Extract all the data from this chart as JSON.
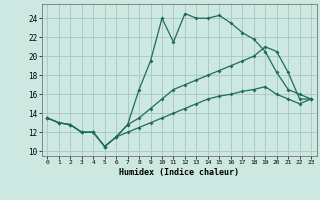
{
  "title": "",
  "xlabel": "Humidex (Indice chaleur)",
  "xlim": [
    -0.5,
    23.5
  ],
  "ylim": [
    9.5,
    25.5
  ],
  "xticks": [
    0,
    1,
    2,
    3,
    4,
    5,
    6,
    7,
    8,
    9,
    10,
    11,
    12,
    13,
    14,
    15,
    16,
    17,
    18,
    19,
    20,
    21,
    22,
    23
  ],
  "yticks": [
    10,
    12,
    14,
    16,
    18,
    20,
    22,
    24
  ],
  "bg_color": "#cce8e0",
  "grid_color": "#aaccc4",
  "line_color": "#1e6b5e",
  "line1_y": [
    13.5,
    13.0,
    12.8,
    12.0,
    12.0,
    10.5,
    11.5,
    12.8,
    16.5,
    19.5,
    24.0,
    21.5,
    24.5,
    24.0,
    24.0,
    24.3,
    23.5,
    22.5,
    21.8,
    20.5,
    18.3,
    16.5,
    16.0,
    15.5
  ],
  "line2_y": [
    13.5,
    13.0,
    12.8,
    12.0,
    12.0,
    10.5,
    11.5,
    12.8,
    13.5,
    14.5,
    15.5,
    16.5,
    17.0,
    17.5,
    18.0,
    18.5,
    19.0,
    19.5,
    20.0,
    21.0,
    20.5,
    18.3,
    15.5,
    15.5
  ],
  "line3_y": [
    13.5,
    13.0,
    12.8,
    12.0,
    12.0,
    10.5,
    11.5,
    12.0,
    12.5,
    13.0,
    13.5,
    14.0,
    14.5,
    15.0,
    15.5,
    15.8,
    16.0,
    16.3,
    16.5,
    16.8,
    16.0,
    15.5,
    15.0,
    15.5
  ]
}
